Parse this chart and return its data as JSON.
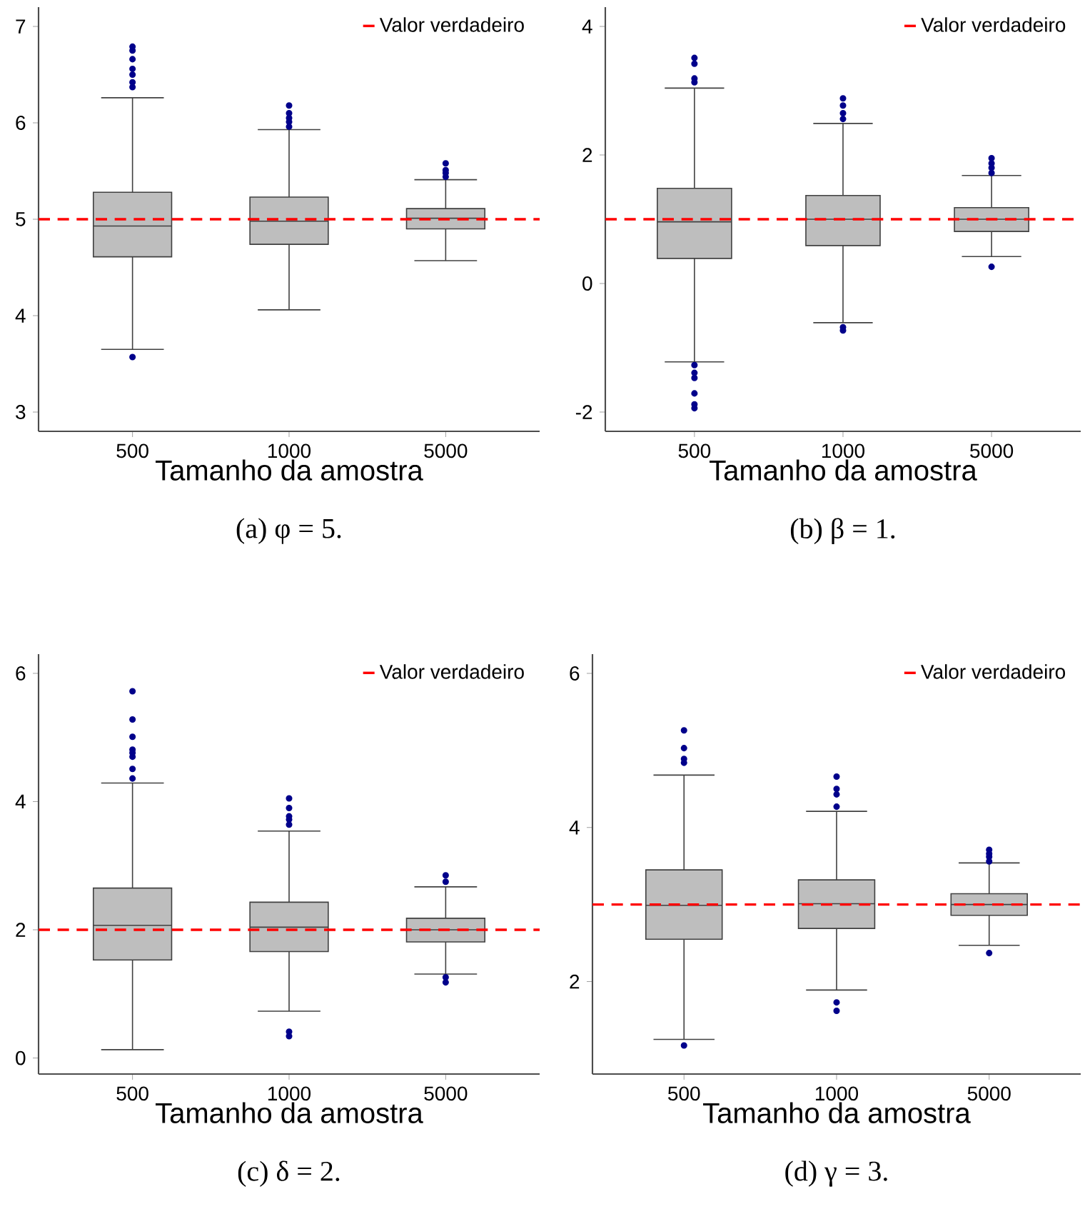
{
  "chart_data": [
    {
      "type": "box",
      "title": "(a) φ = 5.",
      "xlabel": "Tamanho da amostra",
      "categories": [
        "500",
        "1000",
        "5000"
      ],
      "ylim": [
        2.8,
        7.2
      ],
      "yticks": [
        3,
        4,
        5,
        6,
        7
      ],
      "legend": "top right",
      "marker": "circle",
      "ref_lines": [
        {
          "axis": "y",
          "value": 5,
          "label": "Valor verdadeiro",
          "color": "#ff0000",
          "line_style": "dashed"
        }
      ],
      "series": [
        {
          "color": "#bebebe",
          "boxes": [
            {
              "low": 3.65,
              "q1": 4.61,
              "median": 4.93,
              "q3": 5.28,
              "high": 6.26,
              "outliers": [
                3.57,
                6.37,
                6.42,
                6.5,
                6.56,
                6.66,
                6.75,
                6.79
              ]
            },
            {
              "low": 4.06,
              "q1": 4.74,
              "median": 4.98,
              "q3": 5.23,
              "high": 5.93,
              "outliers": [
                5.96,
                6.01,
                6.05,
                6.1,
                6.18
              ]
            },
            {
              "low": 4.57,
              "q1": 4.9,
              "median": 5.01,
              "q3": 5.11,
              "high": 5.41,
              "outliers": [
                5.44,
                5.48,
                5.51,
                5.58
              ]
            }
          ]
        }
      ]
    },
    {
      "type": "box",
      "title": "(b) β = 1.",
      "xlabel": "Tamanho da amostra",
      "categories": [
        "500",
        "1000",
        "5000"
      ],
      "ylim": [
        -2.3,
        4.3
      ],
      "yticks": [
        -2,
        0,
        2,
        4
      ],
      "legend": "top right",
      "marker": "circle",
      "ref_lines": [
        {
          "axis": "y",
          "value": 1,
          "label": "Valor verdadeiro",
          "color": "#ff0000",
          "line_style": "dashed"
        }
      ],
      "series": [
        {
          "color": "#bebebe",
          "boxes": [
            {
              "low": -1.22,
              "q1": 0.39,
              "median": 0.96,
              "q3": 1.48,
              "high": 3.04,
              "outliers": [
                -1.94,
                -1.88,
                -1.71,
                -1.47,
                -1.39,
                -1.27,
                3.13,
                3.19,
                3.42,
                3.51
              ]
            },
            {
              "low": -0.61,
              "q1": 0.59,
              "median": 1.0,
              "q3": 1.37,
              "high": 2.49,
              "outliers": [
                -0.73,
                -0.68,
                2.56,
                2.65,
                2.77,
                2.88
              ]
            },
            {
              "low": 0.42,
              "q1": 0.81,
              "median": 1.0,
              "q3": 1.18,
              "high": 1.68,
              "outliers": [
                0.26,
                1.72,
                1.8,
                1.87,
                1.95
              ]
            }
          ]
        }
      ]
    },
    {
      "type": "box",
      "title": "(c) δ = 2.",
      "xlabel": "Tamanho da amostra",
      "categories": [
        "500",
        "1000",
        "5000"
      ],
      "ylim": [
        -0.25,
        6.3
      ],
      "yticks": [
        0,
        2,
        4,
        6
      ],
      "legend": "top right",
      "marker": "circle",
      "ref_lines": [
        {
          "axis": "y",
          "value": 2,
          "label": "Valor verdadeiro",
          "color": "#ff0000",
          "line_style": "dashed"
        }
      ],
      "series": [
        {
          "color": "#bebebe",
          "boxes": [
            {
              "low": 0.13,
              "q1": 1.53,
              "median": 2.07,
              "q3": 2.65,
              "high": 4.29,
              "outliers": [
                4.36,
                4.51,
                4.7,
                4.76,
                4.81,
                5.01,
                5.28,
                5.72
              ]
            },
            {
              "low": 0.73,
              "q1": 1.66,
              "median": 2.04,
              "q3": 2.43,
              "high": 3.54,
              "outliers": [
                0.34,
                0.41,
                3.64,
                3.72,
                3.77,
                3.9,
                4.05
              ]
            },
            {
              "low": 1.31,
              "q1": 1.81,
              "median": 2.0,
              "q3": 2.18,
              "high": 2.67,
              "outliers": [
                1.18,
                1.26,
                2.75,
                2.85
              ]
            }
          ]
        }
      ]
    },
    {
      "type": "box",
      "title": "(d) γ = 3.",
      "xlabel": "Tamanho da amostra",
      "categories": [
        "500",
        "1000",
        "5000"
      ],
      "ylim": [
        0.8,
        6.25
      ],
      "yticks": [
        2,
        4,
        6
      ],
      "legend": "top right",
      "marker": "circle",
      "ref_lines": [
        {
          "axis": "y",
          "value": 3,
          "label": "Valor verdadeiro",
          "color": "#ff0000",
          "line_style": "dashed"
        }
      ],
      "series": [
        {
          "color": "#bebebe",
          "boxes": [
            {
              "low": 1.25,
              "q1": 2.55,
              "median": 2.99,
              "q3": 3.45,
              "high": 4.68,
              "outliers": [
                1.17,
                4.84,
                4.89,
                5.03,
                5.26
              ]
            },
            {
              "low": 1.89,
              "q1": 2.69,
              "median": 3.01,
              "q3": 3.32,
              "high": 4.21,
              "outliers": [
                1.62,
                1.73,
                4.27,
                4.43,
                4.5,
                4.66
              ]
            },
            {
              "low": 2.47,
              "q1": 2.86,
              "median": 3.0,
              "q3": 3.14,
              "high": 3.54,
              "outliers": [
                2.37,
                3.56,
                3.62,
                3.66,
                3.71
              ]
            }
          ]
        }
      ]
    }
  ]
}
